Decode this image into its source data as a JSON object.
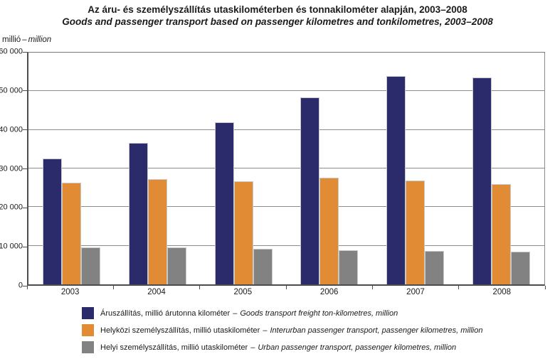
{
  "chart_data": {
    "type": "bar",
    "title": "Az áru- és személyszállítás utaskilométerben és tonnakilométer alapján, 2003–2008",
    "subtitle": "Goods and passenger transport based on passenger kilometres and tonkilometres, 2003–2008",
    "ylabel": "millió – million",
    "unit_hu": "millió",
    "unit_sep": "–",
    "unit_en": "million",
    "xlabel": "",
    "ylim": [
      0,
      60000
    ],
    "ytick_step": 10000,
    "yticks": [
      "0",
      "10 000",
      "20 000",
      "30 000",
      "40 000",
      "50 000",
      "60 000"
    ],
    "grid": true,
    "legend_position": "bottom",
    "categories": [
      "2003",
      "2004",
      "2005",
      "2006",
      "2007",
      "2008"
    ],
    "series": [
      {
        "id": "freight",
        "legend_hu": "Áruszállítás, millió árutonna kilométer",
        "legend_en": "Goods transport freight ton-kilometres, million",
        "color": "#2b2a6b",
        "values": [
          32500,
          36700,
          42000,
          48400,
          53900,
          53500
        ]
      },
      {
        "id": "interurban",
        "legend_hu": "Helyközi személyszállítás, millió utaskilométer",
        "legend_en": "Interurban passenger transport, passenger kilometres, million",
        "color": "#e28b35",
        "values": [
          26400,
          27200,
          26700,
          27700,
          26900,
          26000
        ]
      },
      {
        "id": "urban",
        "legend_hu": "Helyi személyszállítás, millió utaskilométer",
        "legend_en": "Urban passenger transport, passenger kilometres, million",
        "color": "#828282",
        "values": [
          9600,
          9500,
          9200,
          8900,
          8600,
          8500
        ]
      }
    ]
  }
}
